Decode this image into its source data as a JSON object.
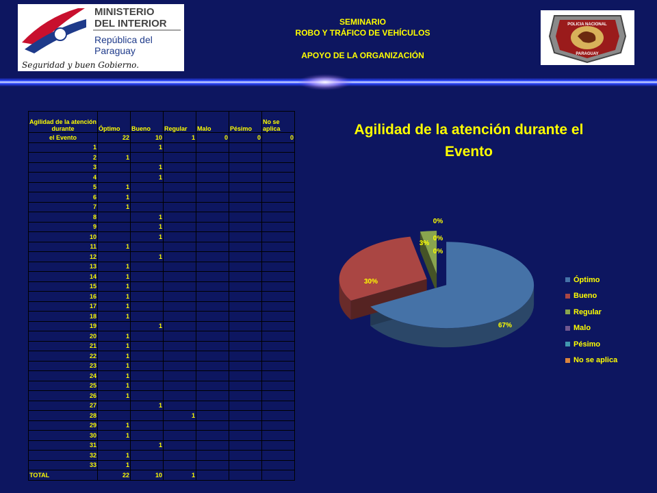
{
  "header": {
    "line1": "SEMINARIO",
    "line2": "ROBO Y TRÁFICO DE VEHÍCULOS",
    "line3": "APOYO DE LA ORGANIZACIÓN"
  },
  "logo_left": {
    "l1": "MINISTERIO",
    "l2": "DEL INTERIOR",
    "l3": "República del",
    "l4": "Paraguay",
    "motto": "Seguridad y buen Gobierno."
  },
  "logo_right": {
    "top": "POLICIA NACIONAL",
    "bottom": "PARAGUAY"
  },
  "table": {
    "header": [
      "Agilidad de la atención durante",
      "Óptimo",
      "Bueno",
      "Regular",
      "Malo",
      "Pésimo",
      "No se aplica"
    ],
    "summary_label": "el Evento",
    "summary": [
      "22",
      "10",
      "1",
      "0",
      "0",
      "0"
    ],
    "rows": [
      {
        "n": "1",
        "o": "",
        "b": "1",
        "r": ""
      },
      {
        "n": "2",
        "o": "1",
        "b": "",
        "r": ""
      },
      {
        "n": "3",
        "o": "",
        "b": "1",
        "r": ""
      },
      {
        "n": "4",
        "o": "",
        "b": "1",
        "r": ""
      },
      {
        "n": "5",
        "o": "1",
        "b": "",
        "r": ""
      },
      {
        "n": "6",
        "o": "1",
        "b": "",
        "r": ""
      },
      {
        "n": "7",
        "o": "1",
        "b": "",
        "r": ""
      },
      {
        "n": "8",
        "o": "",
        "b": "1",
        "r": ""
      },
      {
        "n": "9",
        "o": "",
        "b": "1",
        "r": ""
      },
      {
        "n": "10",
        "o": "",
        "b": "1",
        "r": ""
      },
      {
        "n": "11",
        "o": "1",
        "b": "",
        "r": ""
      },
      {
        "n": "12",
        "o": "",
        "b": "1",
        "r": ""
      },
      {
        "n": "13",
        "o": "1",
        "b": "",
        "r": ""
      },
      {
        "n": "14",
        "o": "1",
        "b": "",
        "r": ""
      },
      {
        "n": "15",
        "o": "1",
        "b": "",
        "r": ""
      },
      {
        "n": "16",
        "o": "1",
        "b": "",
        "r": ""
      },
      {
        "n": "17",
        "o": "1",
        "b": "",
        "r": ""
      },
      {
        "n": "18",
        "o": "1",
        "b": "",
        "r": ""
      },
      {
        "n": "19",
        "o": "",
        "b": "1",
        "r": ""
      },
      {
        "n": "20",
        "o": "1",
        "b": "",
        "r": ""
      },
      {
        "n": "21",
        "o": "1",
        "b": "",
        "r": ""
      },
      {
        "n": "22",
        "o": "1",
        "b": "",
        "r": ""
      },
      {
        "n": "23",
        "o": "1",
        "b": "",
        "r": ""
      },
      {
        "n": "24",
        "o": "1",
        "b": "",
        "r": ""
      },
      {
        "n": "25",
        "o": "1",
        "b": "",
        "r": ""
      },
      {
        "n": "26",
        "o": "1",
        "b": "",
        "r": ""
      },
      {
        "n": "27",
        "o": "",
        "b": "1",
        "r": ""
      },
      {
        "n": "28",
        "o": "",
        "b": "",
        "r": "1"
      },
      {
        "n": "29",
        "o": "1",
        "b": "",
        "r": ""
      },
      {
        "n": "30",
        "o": "1",
        "b": "",
        "r": ""
      },
      {
        "n": "31",
        "o": "",
        "b": "1",
        "r": ""
      },
      {
        "n": "32",
        "o": "1",
        "b": "",
        "r": ""
      },
      {
        "n": "33",
        "o": "1",
        "b": "",
        "r": ""
      }
    ],
    "total_label": "TOTAL",
    "total": [
      "22",
      "10",
      "1"
    ]
  },
  "chart_data": {
    "type": "pie",
    "title": "Agilidad de la atención durante el Evento",
    "categories": [
      "Óptimo",
      "Bueno",
      "Regular",
      "Malo",
      "Pésimo",
      "No se aplica"
    ],
    "values": [
      22,
      10,
      1,
      0,
      0,
      0
    ],
    "labels": [
      "67%",
      "30%",
      "3%",
      "0%",
      "0%",
      "0%"
    ],
    "colors": [
      "#4572a7",
      "#aa4643",
      "#89a54e",
      "#71588f",
      "#4198af",
      "#db843d"
    ],
    "legend": "right"
  }
}
